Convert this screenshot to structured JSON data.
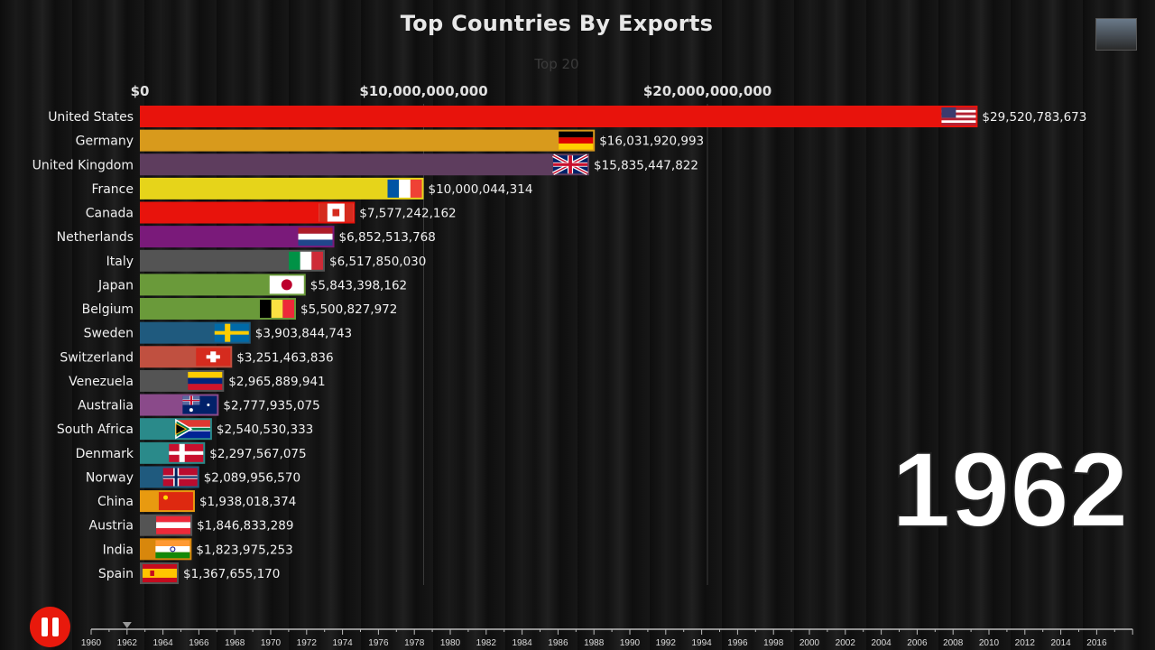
{
  "chart_data": {
    "type": "bar",
    "orientation": "horizontal",
    "title": "Top Countries By Exports",
    "subtitle": "Top 20",
    "xlim": [
      0,
      30000000000
    ],
    "x_ticks": [
      {
        "value": 0,
        "label": "$0"
      },
      {
        "value": 10000000000,
        "label": "$10,000,000,000"
      },
      {
        "value": 20000000000,
        "label": "$20,000,000,000"
      }
    ],
    "grid": true,
    "current_year": "1962",
    "bars": [
      {
        "country": "United States",
        "value": 29520783673,
        "label": "$29,520,783,673",
        "color": "#e8130c",
        "flag": "us"
      },
      {
        "country": "Germany",
        "value": 16031920993,
        "label": "$16,031,920,993",
        "color": "#d89a1c",
        "flag": "de"
      },
      {
        "country": "United Kingdom",
        "value": 15835447822,
        "label": "$15,835,447,822",
        "color": "#5e3d5e",
        "flag": "gb"
      },
      {
        "country": "France",
        "value": 10000044314,
        "label": "$10,000,044,314",
        "color": "#e6d41a",
        "flag": "fr"
      },
      {
        "country": "Canada",
        "value": 7577242162,
        "label": "$7,577,242,162",
        "color": "#e8130c",
        "flag": "ca"
      },
      {
        "country": "Netherlands",
        "value": 6852513768,
        "label": "$6,852,513,768",
        "color": "#7a1a7a",
        "flag": "nl"
      },
      {
        "country": "Italy",
        "value": 6517850030,
        "label": "$6,517,850,030",
        "color": "#545454",
        "flag": "it"
      },
      {
        "country": "Japan",
        "value": 5843398162,
        "label": "$5,843,398,162",
        "color": "#6a9a3a",
        "flag": "jp"
      },
      {
        "country": "Belgium",
        "value": 5500827972,
        "label": "$5,500,827,972",
        "color": "#6a9a3a",
        "flag": "be"
      },
      {
        "country": "Sweden",
        "value": 3903844743,
        "label": "$3,903,844,743",
        "color": "#1f5a7e",
        "flag": "se"
      },
      {
        "country": "Switzerland",
        "value": 3251463836,
        "label": "$3,251,463,836",
        "color": "#c05040",
        "flag": "ch"
      },
      {
        "country": "Venezuela",
        "value": 2965889941,
        "label": "$2,965,889,941",
        "color": "#545454",
        "flag": "ve"
      },
      {
        "country": "Australia",
        "value": 2777935075,
        "label": "$2,777,935,075",
        "color": "#8a4a8a",
        "flag": "au"
      },
      {
        "country": "South Africa",
        "value": 2540530333,
        "label": "$2,540,530,333",
        "color": "#2a8a8a",
        "flag": "za"
      },
      {
        "country": "Denmark",
        "value": 2297567075,
        "label": "$2,297,567,075",
        "color": "#2a8a8a",
        "flag": "dk"
      },
      {
        "country": "Norway",
        "value": 2089956570,
        "label": "$2,089,956,570",
        "color": "#1f5a7e",
        "flag": "no"
      },
      {
        "country": "China",
        "value": 1938018374,
        "label": "$1,938,018,374",
        "color": "#e89a10",
        "flag": "cn"
      },
      {
        "country": "Austria",
        "value": 1846833289,
        "label": "$1,846,833,289",
        "color": "#545454",
        "flag": "at"
      },
      {
        "country": "India",
        "value": 1823975253,
        "label": "$1,823,975,253",
        "color": "#d8870c",
        "flag": "in"
      },
      {
        "country": "Spain",
        "value": 1367655170,
        "label": "$1,367,655,170",
        "color": "#545454",
        "flag": "es"
      }
    ],
    "timeline": {
      "start": 1960,
      "end": 2018,
      "current": 1962,
      "labels": [
        "1960",
        "1962",
        "1964",
        "1966",
        "1968",
        "1970",
        "1972",
        "1974",
        "1976",
        "1978",
        "1980",
        "1982",
        "1984",
        "1986",
        "1988",
        "1990",
        "1992",
        "1994",
        "1996",
        "1998",
        "2000",
        "2002",
        "2004",
        "2006",
        "2008",
        "2010",
        "2012",
        "2014",
        "2016"
      ]
    }
  },
  "controls": {
    "play_state": "playing",
    "button_icon": "pause-icon"
  }
}
